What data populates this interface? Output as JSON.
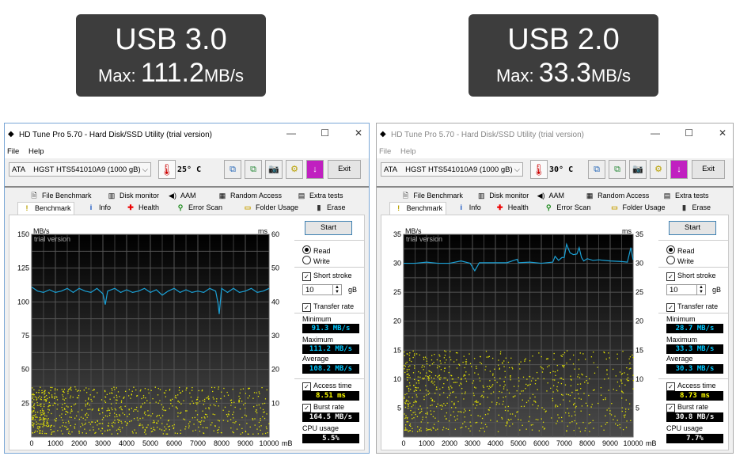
{
  "badges": [
    {
      "title": "USB 3.0",
      "max_label": "Max:",
      "max_value": "111.2",
      "unit": "MB/s"
    },
    {
      "title": "USB 2.0",
      "max_label": "Max:",
      "max_value": "33.3",
      "unit": "MB/s"
    }
  ],
  "windows": [
    {
      "title": "HD Tune Pro 5.70 - Hard Disk/SSD Utility (trial version)",
      "active": true,
      "menu": [
        "File",
        "Help"
      ],
      "drive": "ATA    HGST HTS541010A9 (1000 gB)",
      "temperature": "25° C",
      "exit_label": "Exit",
      "tabs_row1": [
        "File Benchmark",
        "Disk monitor",
        "AAM",
        "Random Access",
        "Extra tests"
      ],
      "tabs_row2": [
        "Benchmark",
        "Info",
        "Health",
        "Error Scan",
        "Folder Usage",
        "Erase"
      ],
      "selected_tab": "Benchmark",
      "start_label": "Start",
      "read_label": "Read",
      "write_label": "Write",
      "mode": "Read",
      "short_stroke_label": "Short stroke",
      "short_stroke_checked": true,
      "stroke_value": "10",
      "stroke_unit": "gB",
      "transfer_rate_label": "Transfer rate",
      "transfer_rate_checked": true,
      "minimum_label": "Minimum",
      "minimum": "91.3 MB/s",
      "maximum_label": "Maximum",
      "maximum": "111.2 MB/s",
      "average_label": "Average",
      "average": "108.2 MB/s",
      "access_time_label": "Access time",
      "access_time_checked": true,
      "access_time": "8.51 ms",
      "burst_rate_label": "Burst rate",
      "burst_rate_checked": true,
      "burst_rate": "164.5 MB/s",
      "cpu_label": "CPU usage",
      "cpu": "5.5%"
    },
    {
      "title": "HD Tune Pro 5.70 - Hard Disk/SSD Utility (trial version)",
      "active": false,
      "menu": [
        "File",
        "Help"
      ],
      "drive": "ATA    HGST HTS541010A9 (1000 gB)",
      "temperature": "30° C",
      "exit_label": "Exit",
      "tabs_row1": [
        "File Benchmark",
        "Disk monitor",
        "AAM",
        "Random Access",
        "Extra tests"
      ],
      "tabs_row2": [
        "Benchmark",
        "Info",
        "Health",
        "Error Scan",
        "Folder Usage",
        "Erase"
      ],
      "selected_tab": "Benchmark",
      "start_label": "Start",
      "read_label": "Read",
      "write_label": "Write",
      "mode": "Read",
      "short_stroke_label": "Short stroke",
      "short_stroke_checked": true,
      "stroke_value": "10",
      "stroke_unit": "gB",
      "transfer_rate_label": "Transfer rate",
      "transfer_rate_checked": true,
      "minimum_label": "Minimum",
      "minimum": "28.7 MB/s",
      "maximum_label": "Maximum",
      "maximum": "33.3 MB/s",
      "average_label": "Average",
      "average": "30.3 MB/s",
      "access_time_label": "Access time",
      "access_time_checked": true,
      "access_time": "8.73 ms",
      "burst_rate_label": "Burst rate",
      "burst_rate_checked": true,
      "burst_rate": "30.8 MB/s",
      "cpu_label": "CPU usage",
      "cpu": "7.7%"
    }
  ],
  "colors": {
    "transfer_line": "#1ba1d6",
    "access_dots": "#e6e600",
    "lcd_blue": "#00c8ff",
    "lcd_yellow": "#ffff00",
    "lcd_white": "#ffffff",
    "badge_bg": "#3d3d3d"
  },
  "chart_data": [
    {
      "type": "line",
      "watermark": "trial version",
      "ylabel": "MB/s",
      "y2label": "ms",
      "xlabel_unit": "mB",
      "xlim": [
        0,
        10000
      ],
      "ylim": [
        0,
        150
      ],
      "y2lim": [
        0,
        60
      ],
      "xticks": [
        "0",
        "1000",
        "2000",
        "3000",
        "4000",
        "5000",
        "6000",
        "7000",
        "8000",
        "9000",
        "10000"
      ],
      "yticks": [
        "150",
        "125",
        "100",
        "75",
        "50",
        "25"
      ],
      "y2ticks": [
        "60",
        "50",
        "40",
        "30",
        "20",
        "10"
      ],
      "grid": true,
      "series": {
        "x": [
          0,
          250,
          500,
          750,
          1000,
          1250,
          1500,
          1750,
          2000,
          2250,
          2500,
          2750,
          3000,
          3100,
          3200,
          3500,
          3750,
          4000,
          4250,
          4500,
          4750,
          5000,
          5250,
          5500,
          5750,
          6000,
          6250,
          6500,
          6750,
          7000,
          7250,
          7500,
          7750,
          7850,
          7900,
          8000,
          8250,
          8500,
          8750,
          9000,
          9250,
          9500,
          9750,
          10000
        ],
        "y": [
          111,
          108,
          107,
          109,
          107,
          108,
          110,
          107,
          110,
          108,
          107,
          110,
          106,
          98,
          108,
          110,
          107,
          109,
          107,
          108,
          110,
          107,
          109,
          105,
          108,
          110,
          107,
          109,
          107,
          108,
          107,
          110,
          108,
          99,
          91,
          110,
          107,
          110,
          107,
          108,
          110,
          107,
          108,
          110
        ]
      },
      "access_time_scatter": {
        "ms_range": [
          1,
          15
        ],
        "note_visible": "yellow dots"
      }
    },
    {
      "type": "line",
      "watermark": "trial version",
      "ylabel": "MB/s",
      "y2label": "ms",
      "xlabel_unit": "mB",
      "xlim": [
        0,
        10000
      ],
      "ylim": [
        0,
        35
      ],
      "y2lim": [
        0,
        35
      ],
      "xticks": [
        "0",
        "1000",
        "2000",
        "3000",
        "4000",
        "5000",
        "6000",
        "7000",
        "8000",
        "9000",
        "10000"
      ],
      "yticks": [
        "35",
        "30",
        "25",
        "20",
        "15",
        "10",
        "5"
      ],
      "y2ticks": [
        "35",
        "30",
        "25",
        "20",
        "15",
        "10",
        "5"
      ],
      "grid": true,
      "series": {
        "x": [
          0,
          500,
          1000,
          1500,
          2000,
          2500,
          2900,
          3100,
          3300,
          4000,
          4500,
          4950,
          5000,
          5500,
          6000,
          6500,
          6600,
          6750,
          6900,
          7000,
          7100,
          7250,
          7400,
          7550,
          7650,
          7750,
          7850,
          8000,
          8250,
          8500,
          9000,
          9500,
          9750,
          9900,
          10000
        ],
        "y": [
          30,
          30,
          30.2,
          30,
          30,
          30.4,
          30,
          28.7,
          30.1,
          30.1,
          30.1,
          30.7,
          30.1,
          30.2,
          30,
          30.2,
          31.2,
          30.5,
          31,
          31,
          33.3,
          31.8,
          31.5,
          31.6,
          32.7,
          31,
          30.4,
          30.8,
          30.5,
          30.6,
          30.4,
          30.3,
          30.2,
          32.7,
          30.6
        ]
      },
      "access_time_scatter": {
        "ms_range": [
          1,
          15
        ],
        "note_visible": "yellow dots"
      }
    }
  ]
}
